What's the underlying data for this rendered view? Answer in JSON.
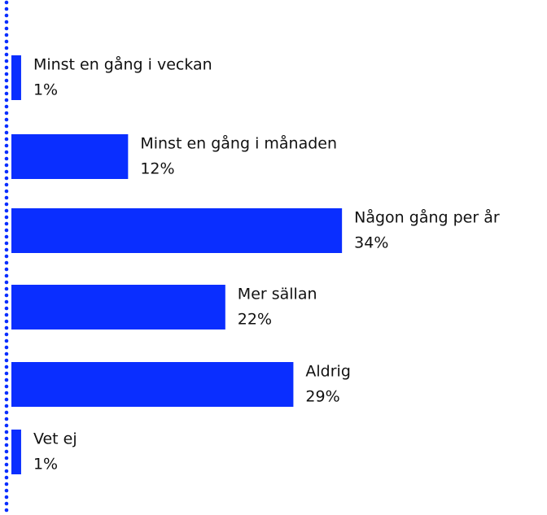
{
  "chart_data": {
    "type": "bar",
    "orientation": "horizontal",
    "categories": [
      "Minst en gång i veckan",
      "Minst en gång i månaden",
      "Någon gång per år",
      "Mer sällan",
      "Aldrig",
      "Vet ej"
    ],
    "values": [
      1,
      12,
      34,
      22,
      29,
      1
    ],
    "value_labels": [
      "1%",
      "12%",
      "34%",
      "22%",
      "29%",
      "1%"
    ],
    "color": "#0a2eff",
    "xlim": [
      0,
      55
    ]
  }
}
